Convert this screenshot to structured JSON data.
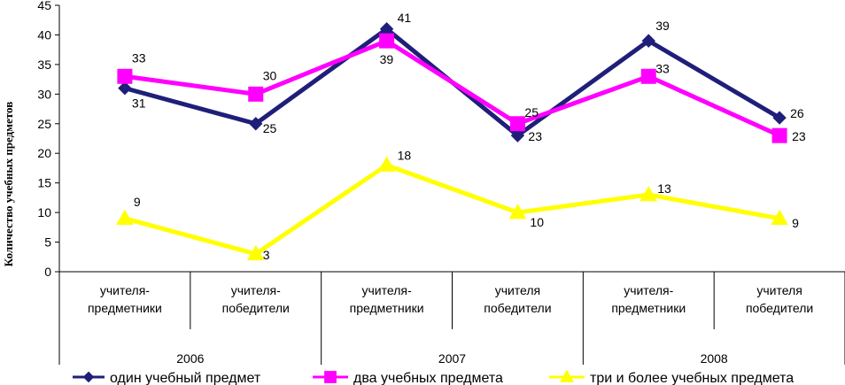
{
  "chart_data": {
    "type": "line",
    "ylabel": "Количество учебных предметов",
    "xlabel": "",
    "ylim": [
      0,
      45
    ],
    "yticks": [
      0,
      5,
      10,
      15,
      20,
      25,
      30,
      35,
      40,
      45
    ],
    "categories": [
      {
        "label": "учителя-\nпредметники",
        "group": "2006"
      },
      {
        "label": "учителя-\nпобедители",
        "group": "2006"
      },
      {
        "label": "учителя-\nпредметники",
        "group": "2007"
      },
      {
        "label": "учителя\nпобедители",
        "group": "2007"
      },
      {
        "label": "учителя-\nпредметники",
        "group": "2008"
      },
      {
        "label": "учителя\nпобедители",
        "group": "2008"
      }
    ],
    "groups": [
      "2006",
      "2007",
      "2008"
    ],
    "grid": false,
    "legend": "bottom",
    "series": [
      {
        "name": "один учебный  предмет",
        "color": "#1f1f7a",
        "marker": "diamond",
        "values": [
          31,
          25,
          41,
          23,
          39,
          26
        ]
      },
      {
        "name": "два учебных предмета",
        "color": "#ff00ff",
        "marker": "square",
        "values": [
          33,
          30,
          39,
          25,
          33,
          23
        ]
      },
      {
        "name": "три  и более учебных предмета",
        "color": "#ffff00",
        "marker": "triangle",
        "values": [
          9,
          3,
          18,
          10,
          13,
          9
        ]
      }
    ]
  }
}
